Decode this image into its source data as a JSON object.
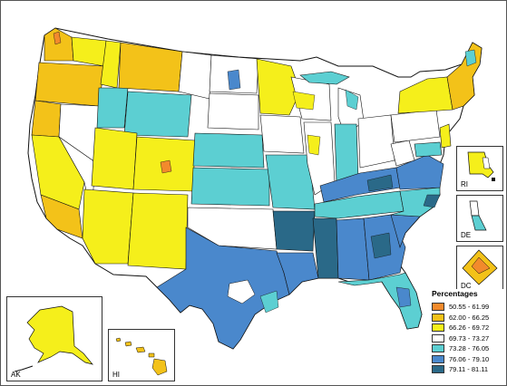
{
  "legend": {
    "title": "Percentages",
    "classes": [
      {
        "label": "50.55 - 61.99",
        "color": "#f28a2c"
      },
      {
        "label": "62.00 - 66.25",
        "color": "#f3c219"
      },
      {
        "label": "66.26 - 69.72",
        "color": "#f5ef1b"
      },
      {
        "label": "69.73 - 73.27",
        "color": "#ffffff"
      },
      {
        "label": "73.28 - 76.05",
        "color": "#5ccfd2"
      },
      {
        "label": "76.06 - 79.10",
        "color": "#4a88cc"
      },
      {
        "label": "79.11 - 81.11",
        "color": "#2a6988"
      }
    ]
  },
  "insets": {
    "ak": "AK",
    "hi": "HI",
    "ri": "RI",
    "de": "DE",
    "dc": "DC"
  },
  "colors": {
    "outline": "#111111",
    "border": "#555555"
  }
}
